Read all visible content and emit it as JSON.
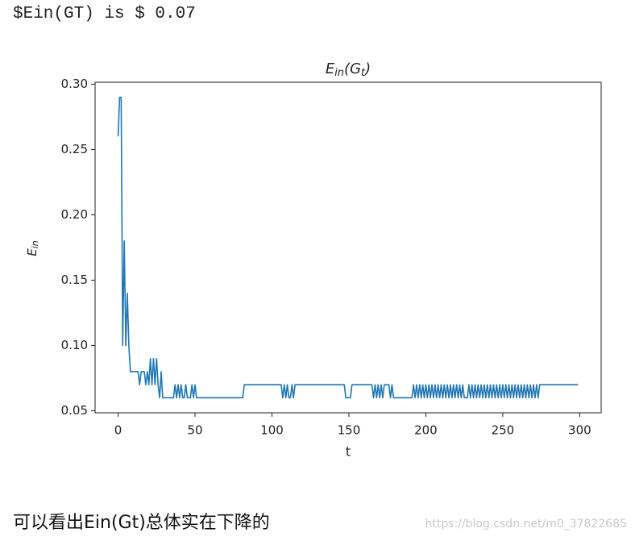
{
  "header_text": "$Ein(GT) is $ 0.07",
  "caption": "可以看出Ein(Gt)总体实在下降的",
  "watermark": "https://blog.csdn.net/m0_37822685",
  "chart_data": {
    "type": "line",
    "title": [
      "E",
      "in",
      "(G",
      "t",
      ")"
    ],
    "xlabel": "t",
    "ylabel": [
      "E",
      "in"
    ],
    "color": "#1f77b4",
    "xlim": [
      -14.95,
      313.95
    ],
    "ylim": [
      0.0485,
      0.3015
    ],
    "xticks": [
      0,
      50,
      100,
      150,
      200,
      250,
      300
    ],
    "yticks": [
      0.05,
      {
        "value": 0.1,
        "label": "0.10"
      },
      0.15,
      {
        "value": 0.2,
        "label": "0.20"
      },
      0.25,
      {
        "value": 0.3,
        "label": "0.30"
      }
    ],
    "x": [
      0,
      1,
      2,
      3,
      4,
      5,
      6,
      7,
      8,
      9,
      10,
      11,
      12,
      13,
      14,
      15,
      16,
      17,
      18,
      19,
      20,
      21,
      22,
      23,
      24,
      25,
      26,
      27,
      28,
      29,
      30,
      31,
      32,
      33,
      34,
      35,
      36,
      37,
      38,
      39,
      40,
      41,
      42,
      43,
      44,
      45,
      46,
      47,
      48,
      49,
      50,
      51,
      52,
      53,
      54,
      55,
      56,
      57,
      58,
      59,
      60,
      61,
      62,
      63,
      64,
      65,
      66,
      67,
      68,
      69,
      70,
      71,
      72,
      73,
      74,
      75,
      76,
      77,
      78,
      79,
      80,
      81,
      82,
      83,
      84,
      85,
      86,
      87,
      88,
      89,
      90,
      91,
      92,
      93,
      94,
      95,
      96,
      97,
      98,
      99,
      100,
      101,
      102,
      103,
      104,
      105,
      106,
      107,
      108,
      109,
      110,
      111,
      112,
      113,
      114,
      115,
      116,
      117,
      118,
      119,
      120,
      121,
      122,
      123,
      124,
      125,
      126,
      127,
      128,
      129,
      130,
      131,
      132,
      133,
      134,
      135,
      136,
      137,
      138,
      139,
      140,
      141,
      142,
      143,
      144,
      145,
      146,
      147,
      148,
      149,
      150,
      151,
      152,
      153,
      154,
      155,
      156,
      157,
      158,
      159,
      160,
      161,
      162,
      163,
      164,
      165,
      166,
      167,
      168,
      169,
      170,
      171,
      172,
      173,
      174,
      175,
      176,
      177,
      178,
      179,
      180,
      181,
      182,
      183,
      184,
      185,
      186,
      187,
      188,
      189,
      190,
      191,
      192,
      193,
      194,
      195,
      196,
      197,
      198,
      199,
      200,
      201,
      202,
      203,
      204,
      205,
      206,
      207,
      208,
      209,
      210,
      211,
      212,
      213,
      214,
      215,
      216,
      217,
      218,
      219,
      220,
      221,
      222,
      223,
      224,
      225,
      226,
      227,
      228,
      229,
      230,
      231,
      232,
      233,
      234,
      235,
      236,
      237,
      238,
      239,
      240,
      241,
      242,
      243,
      244,
      245,
      246,
      247,
      248,
      249,
      250,
      251,
      252,
      253,
      254,
      255,
      256,
      257,
      258,
      259,
      260,
      261,
      262,
      263,
      264,
      265,
      266,
      267,
      268,
      269,
      270,
      271,
      272,
      273,
      274,
      275,
      276,
      277,
      278,
      279,
      280,
      281,
      282,
      283,
      284,
      285,
      286,
      287,
      288,
      289,
      290,
      291,
      292,
      293,
      294,
      295,
      296,
      297,
      298,
      299
    ],
    "values": [
      0.26,
      0.29,
      0.29,
      0.1,
      0.18,
      0.1,
      0.14,
      0.1,
      0.08,
      0.08,
      0.08,
      0.08,
      0.08,
      0.08,
      0.07,
      0.08,
      0.08,
      0.08,
      0.07,
      0.08,
      0.07,
      0.09,
      0.07,
      0.09,
      0.07,
      0.09,
      0.07,
      0.06,
      0.08,
      0.06,
      0.06,
      0.06,
      0.06,
      0.06,
      0.06,
      0.06,
      0.06,
      0.07,
      0.06,
      0.07,
      0.06,
      0.07,
      0.06,
      0.06,
      0.07,
      0.06,
      0.06,
      0.06,
      0.07,
      0.06,
      0.07,
      0.06,
      0.06,
      0.06,
      0.06,
      0.06,
      0.06,
      0.06,
      0.06,
      0.06,
      0.06,
      0.06,
      0.06,
      0.06,
      0.06,
      0.06,
      0.06,
      0.06,
      0.06,
      0.06,
      0.06,
      0.06,
      0.06,
      0.06,
      0.06,
      0.06,
      0.06,
      0.06,
      0.06,
      0.06,
      0.06,
      0.06,
      0.07,
      0.07,
      0.07,
      0.07,
      0.07,
      0.07,
      0.07,
      0.07,
      0.07,
      0.07,
      0.07,
      0.07,
      0.07,
      0.07,
      0.07,
      0.07,
      0.07,
      0.07,
      0.07,
      0.07,
      0.07,
      0.07,
      0.07,
      0.07,
      0.07,
      0.06,
      0.07,
      0.06,
      0.07,
      0.06,
      0.06,
      0.07,
      0.06,
      0.07,
      0.07,
      0.07,
      0.07,
      0.07,
      0.07,
      0.07,
      0.07,
      0.07,
      0.07,
      0.07,
      0.07,
      0.07,
      0.07,
      0.07,
      0.07,
      0.07,
      0.07,
      0.07,
      0.07,
      0.07,
      0.07,
      0.07,
      0.07,
      0.07,
      0.07,
      0.07,
      0.07,
      0.07,
      0.07,
      0.07,
      0.07,
      0.07,
      0.06,
      0.06,
      0.06,
      0.06,
      0.07,
      0.07,
      0.07,
      0.07,
      0.07,
      0.07,
      0.07,
      0.07,
      0.07,
      0.07,
      0.07,
      0.07,
      0.07,
      0.07,
      0.06,
      0.07,
      0.06,
      0.07,
      0.06,
      0.07,
      0.06,
      0.07,
      0.07,
      0.07,
      0.07,
      0.06,
      0.07,
      0.06,
      0.06,
      0.06,
      0.06,
      0.06,
      0.06,
      0.06,
      0.06,
      0.06,
      0.06,
      0.06,
      0.06,
      0.06,
      0.07,
      0.06,
      0.07,
      0.06,
      0.07,
      0.06,
      0.07,
      0.06,
      0.07,
      0.06,
      0.07,
      0.06,
      0.07,
      0.06,
      0.07,
      0.06,
      0.07,
      0.06,
      0.07,
      0.06,
      0.07,
      0.06,
      0.07,
      0.06,
      0.07,
      0.06,
      0.07,
      0.06,
      0.07,
      0.06,
      0.07,
      0.06,
      0.07,
      0.06,
      0.06,
      0.06,
      0.07,
      0.06,
      0.07,
      0.06,
      0.07,
      0.06,
      0.07,
      0.06,
      0.07,
      0.06,
      0.07,
      0.06,
      0.07,
      0.06,
      0.07,
      0.06,
      0.07,
      0.06,
      0.07,
      0.06,
      0.07,
      0.06,
      0.07,
      0.06,
      0.07,
      0.06,
      0.07,
      0.06,
      0.07,
      0.06,
      0.07,
      0.06,
      0.07,
      0.06,
      0.07,
      0.06,
      0.07,
      0.06,
      0.07,
      0.06,
      0.07,
      0.06,
      0.07,
      0.06,
      0.07,
      0.06,
      0.07,
      0.07,
      0.07,
      0.07,
      0.07,
      0.07,
      0.07,
      0.07,
      0.07,
      0.07,
      0.07,
      0.07,
      0.07,
      0.07,
      0.07,
      0.07,
      0.07,
      0.07,
      0.07,
      0.07,
      0.07,
      0.07,
      0.07,
      0.07,
      0.07,
      0.07
    ]
  }
}
